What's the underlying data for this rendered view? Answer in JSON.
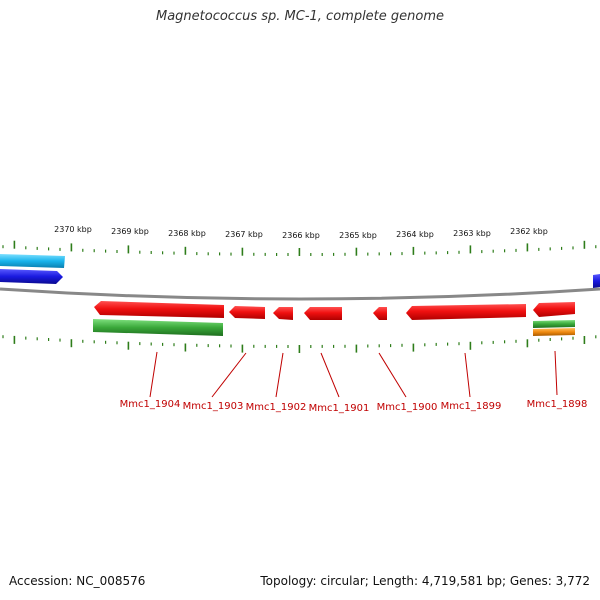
{
  "title": "Magnetococcus sp. MC-1, complete genome",
  "ruler": {
    "labels": [
      "2370 kbp",
      "2369 kbp",
      "2368 kbp",
      "2367 kbp",
      "2366 kbp",
      "2365 kbp",
      "2364 kbp",
      "2363 kbp",
      "2362 kbp"
    ]
  },
  "genes": [
    {
      "name": "Mmc1_1904"
    },
    {
      "name": "Mmc1_1903"
    },
    {
      "name": "Mmc1_1902"
    },
    {
      "name": "Mmc1_1901"
    },
    {
      "name": "Mmc1_1900"
    },
    {
      "name": "Mmc1_1899"
    },
    {
      "name": "Mmc1_1898"
    }
  ],
  "colors": {
    "backbone": "#888888",
    "tick": "#2e7d1a",
    "reverse_gene": "#e81010",
    "gene_label": "#c00000",
    "forward_cyan": "#19b4ec",
    "forward_blue": "#1a1ae0",
    "green": "#3aa83a",
    "orange": "#f08a10"
  },
  "footer": {
    "accession": "Accession: NC_008576",
    "summary": "Topology: circular; Length: 4,719,581 bp; Genes: 3,772"
  }
}
